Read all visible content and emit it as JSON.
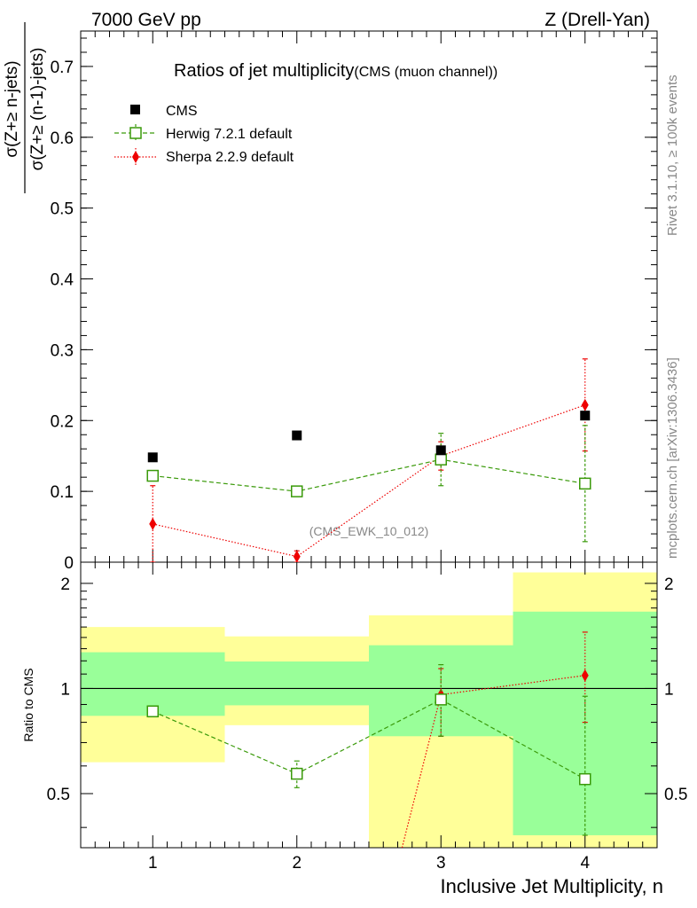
{
  "header": {
    "left_label": "7000 GeV pp",
    "right_label": "Z (Drell-Yan)"
  },
  "side_labels": {
    "rivet": "Rivet 3.1.10, ≥ 100k events",
    "mcplots": "mcplots.cern.ch [arXiv:1306.3436]"
  },
  "colors": {
    "cms": "#000000",
    "herwig": "#3a9a0a",
    "sherpa": "#ee0000",
    "band_inner": "#99ff99",
    "band_outer": "#ffff99"
  },
  "chart_data": [
    {
      "type": "scatter",
      "title": "Ratios of jet multiplicity",
      "subtitle": "(CMS (muon channel))",
      "watermark": "(CMS_EWK_10_012)",
      "ylabel_numerator": "σ(Z+≥ n-jets)",
      "ylabel_denominator": "σ(Z+≥ (n-1)-jets)",
      "ylim": [
        0,
        0.75
      ],
      "yticks": [
        0,
        0.1,
        0.2,
        0.3,
        0.4,
        0.5,
        0.6,
        0.7
      ],
      "ytick_labels": [
        "0",
        "0.1",
        "0.2",
        "0.3",
        "0.4",
        "0.5",
        "0.6",
        "0.7"
      ],
      "xlim": [
        0.5,
        4.5
      ],
      "legend_position": "top-left",
      "series": [
        {
          "name": "CMS",
          "marker": "filled-square",
          "x": [
            1,
            2,
            3,
            4
          ],
          "y": [
            0.148,
            0.179,
            0.158,
            0.207
          ]
        },
        {
          "name": "Herwig 7.2.1 default",
          "marker": "open-square",
          "line": "dashed",
          "x": [
            1,
            2,
            3,
            4
          ],
          "y": [
            0.122,
            0.1,
            0.145,
            0.111
          ],
          "err_low": [
            0.004,
            0.007,
            0.037,
            0.082
          ],
          "err_high": [
            0.004,
            0.007,
            0.037,
            0.082
          ]
        },
        {
          "name": "Sherpa 2.2.9 default",
          "marker": "diamond",
          "line": "dotted",
          "x": [
            1,
            2,
            3,
            4
          ],
          "y": [
            0.054,
            0.008,
            0.15,
            0.222
          ],
          "err_low": [
            0.054,
            0.008,
            0.02,
            0.065
          ],
          "err_high": [
            0.054,
            0.008,
            0.02,
            0.065
          ]
        }
      ]
    },
    {
      "type": "scatter",
      "ylabel": "Ratio to CMS",
      "xlabel": "Inclusive Jet Multiplicity, n",
      "ylim": [
        0.35,
        2.3
      ],
      "yscale": "log",
      "yticks": [
        0.5,
        1,
        2
      ],
      "ytick_labels": [
        "0.5",
        "1",
        "2"
      ],
      "xlim": [
        0.5,
        4.5
      ],
      "xticks": [
        1,
        2,
        3,
        4
      ],
      "xtick_labels": [
        "1",
        "2",
        "3",
        "4"
      ],
      "bands": [
        {
          "x0": 0.5,
          "x1": 1.5,
          "inner": [
            0.835,
            1.27
          ],
          "outer": [
            0.615,
            1.5
          ]
        },
        {
          "x0": 1.5,
          "x1": 2.5,
          "inner": [
            0.895,
            1.195
          ],
          "outer": [
            0.785,
            1.41
          ]
        },
        {
          "x0": 2.5,
          "x1": 3.5,
          "inner": [
            0.73,
            1.33
          ],
          "outer": [
            0.35,
            1.62
          ]
        },
        {
          "x0": 3.5,
          "x1": 4.5,
          "inner": [
            0.38,
            1.66
          ],
          "outer": [
            0.35,
            2.15
          ]
        }
      ],
      "series": [
        {
          "name": "Herwig 7.2.1 default",
          "x": [
            1,
            2,
            3,
            4
          ],
          "y": [
            0.86,
            0.57,
            0.93,
            0.55
          ],
          "err_low": [
            0.0,
            0.05,
            0.2,
            0.17
          ],
          "err_high": [
            0.0,
            0.05,
            0.24,
            0.4
          ]
        },
        {
          "name": "Sherpa 2.2.9 default",
          "x": [
            3,
            4
          ],
          "y": [
            0.96,
            1.09
          ],
          "err_low": [
            0.23,
            0.29
          ],
          "err_high": [
            0.18,
            0.36
          ],
          "line_from": {
            "x": 2.73,
            "y": 0.35
          }
        }
      ],
      "reference_line": 1
    }
  ]
}
